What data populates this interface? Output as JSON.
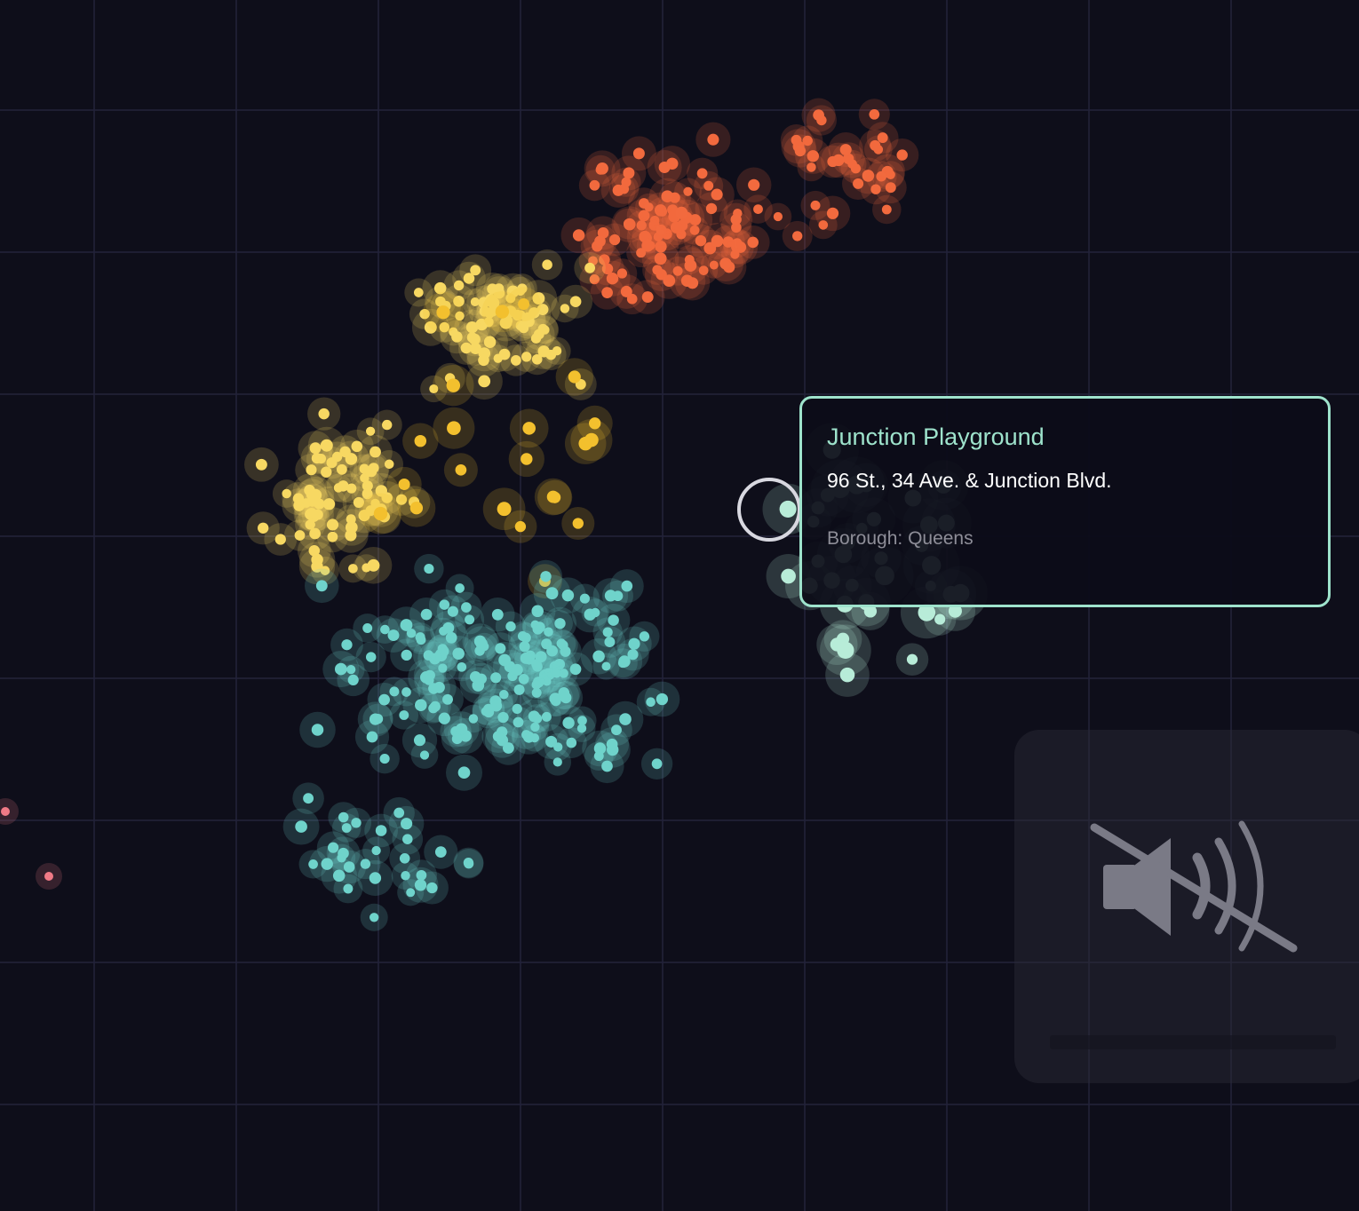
{
  "tooltip": {
    "name": "Junction Playground",
    "address": "96 St., 34 Ave. & Junction Blvd.",
    "borough_text": "Borough: Queens"
  },
  "icons": {
    "audio": "speaker-muted-icon",
    "selection": "selection-ring"
  },
  "colors": {
    "background": "#0e0e1a",
    "grid": "#23233a",
    "teal": "#6fd3cb",
    "mint": "#b8ecd8",
    "yellow": "#f7d862",
    "gold": "#f3c02e",
    "orange": "#f26a3e",
    "pink": "#f07a86",
    "tooltip_border": "#9ee3cc",
    "selection_ring": "#d8d8e0"
  }
}
